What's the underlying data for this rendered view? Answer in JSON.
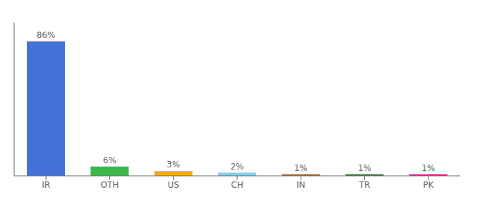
{
  "chart_data": {
    "type": "bar",
    "categories": [
      "IR",
      "OTH",
      "US",
      "CH",
      "IN",
      "TR",
      "PK"
    ],
    "values": [
      86,
      6,
      3,
      2,
      1,
      1,
      1
    ],
    "value_labels": [
      "86%",
      "6%",
      "3%",
      "2%",
      "1%",
      "1%",
      "1%"
    ],
    "colors": [
      "#4472d9",
      "#3cb84a",
      "#f5a623",
      "#7ecfef",
      "#b5651d",
      "#2e7d32",
      "#e91e8c"
    ],
    "ylim": [
      0,
      98
    ],
    "data_labels": true,
    "tick_labels": "x",
    "grid": false
  }
}
